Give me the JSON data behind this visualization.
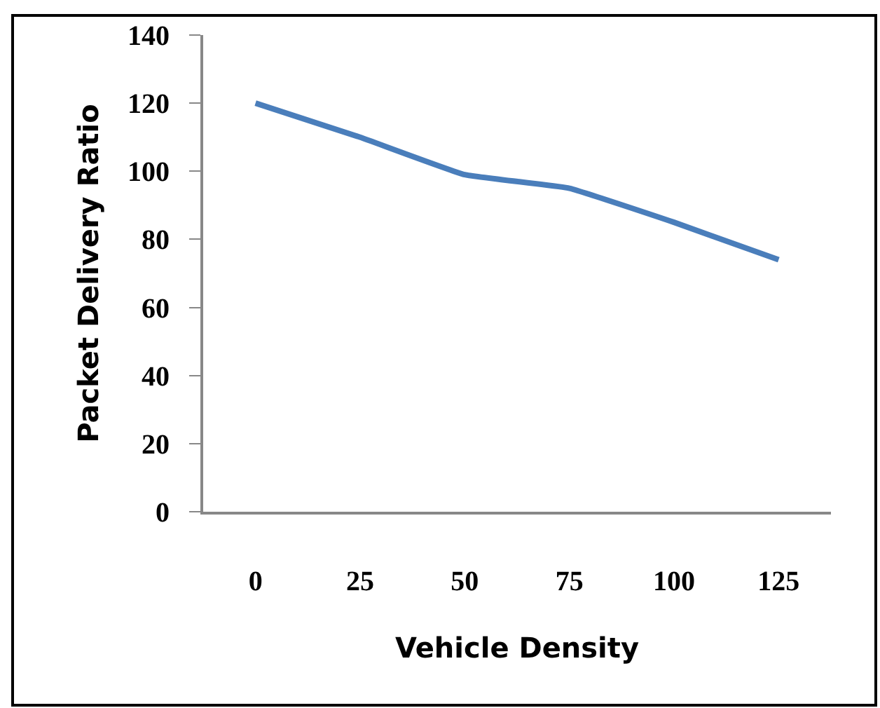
{
  "chart_data": {
    "type": "line",
    "xlabel": "Vehicle Density",
    "ylabel": "Packet Delivery Ratio",
    "categories": [
      "0",
      "25",
      "50",
      "75",
      "100",
      "125"
    ],
    "series": [
      {
        "color": "#4a7ebb",
        "values": [
          120,
          110,
          99,
          95,
          85,
          74
        ]
      }
    ],
    "ylim": [
      0,
      140
    ],
    "yticks": [
      0,
      20,
      40,
      60,
      80,
      100,
      120,
      140
    ],
    "marker": "none",
    "line_style": "solid"
  }
}
